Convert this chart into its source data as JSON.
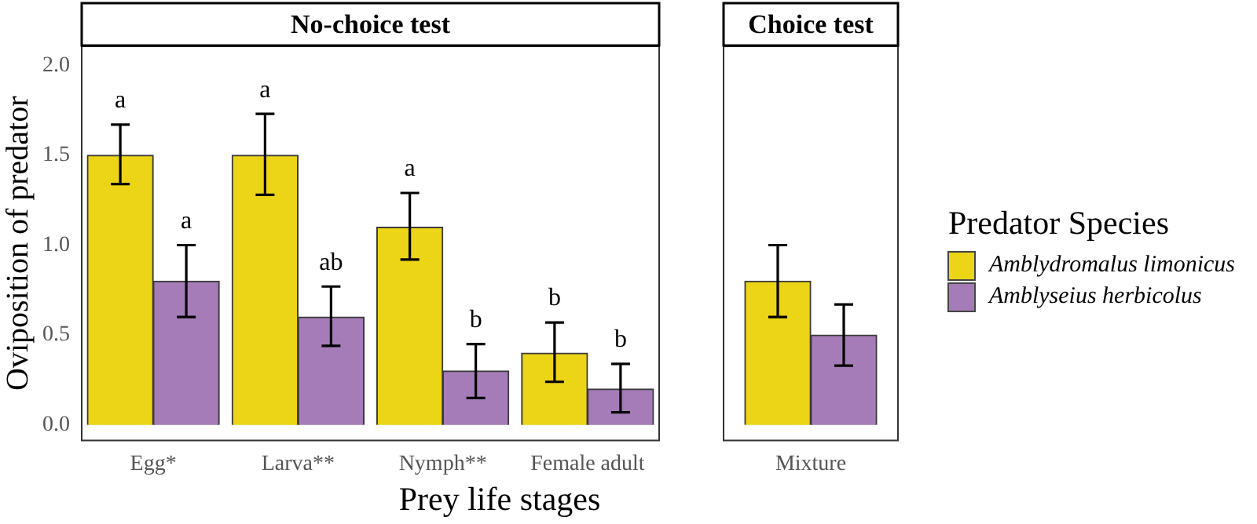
{
  "chart_data": [
    {
      "type": "bar",
      "title": "No-choice test",
      "xlabel": "Prey life stages",
      "legend_title": "Predator Species",
      "legend": "right",
      "ylabel": "Oviposition of predator",
      "categories": [
        "Egg*",
        "Larva**",
        "Nymph**",
        "Female adult"
      ],
      "series": [
        {
          "name": "Amblydromalus limonicus",
          "color": "#ecd416",
          "values": [
            1.5,
            1.5,
            1.1,
            0.4
          ],
          "errors": [
            [
              1.34,
              1.67
            ],
            [
              1.28,
              1.73
            ],
            [
              0.92,
              1.29
            ],
            [
              0.24,
              0.57
            ]
          ],
          "value_labels": [
            "a",
            "a",
            "a",
            "b"
          ]
        },
        {
          "name": "Amblyseius herbicolus",
          "color": "#a57cb8",
          "values": [
            0.8,
            0.6,
            0.3,
            0.2
          ],
          "errors": [
            [
              0.6,
              1.0
            ],
            [
              0.44,
              0.77
            ],
            [
              0.15,
              0.45
            ],
            [
              0.07,
              0.34
            ]
          ],
          "value_labels": [
            "a",
            "ab",
            "b",
            "b"
          ]
        }
      ],
      "ylim": [
        -0.09,
        2.11
      ],
      "yticks": [
        {
          "value": 0,
          "label": "0.0"
        },
        {
          "value": 0.5,
          "label": "0.5"
        },
        {
          "value": 1,
          "label": "1.0"
        },
        {
          "value": 1.5,
          "label": "1.5"
        },
        {
          "value": 2,
          "label": "2.0"
        }
      ]
    },
    {
      "type": "bar",
      "title": "Choice test",
      "categories": [
        "Mixture"
      ],
      "tick_labels": "x",
      "series": [
        {
          "color": "#ecd416",
          "values": [
            0.8
          ],
          "errors": [
            [
              0.6,
              1.0
            ]
          ]
        },
        {
          "color": "#a57cb8",
          "values": [
            0.5
          ],
          "errors": [
            [
              0.33,
              0.67
            ]
          ]
        }
      ],
      "ylim": [
        -0.09,
        2.11
      ]
    }
  ]
}
